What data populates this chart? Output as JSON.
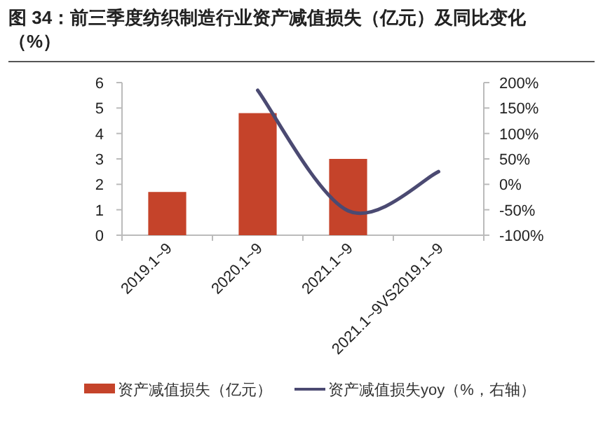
{
  "chart_data": {
    "type": "bar",
    "title": "图 34：前三季度纺织制造行业资产减值损失（亿元）及同比变化（%）",
    "categories": [
      "2019.1~9",
      "2020.1~9",
      "2021.1~9",
      "2021.1~9VS2019.1~9"
    ],
    "series": [
      {
        "name": "资产减值损失（亿元）",
        "color": "#c5432a",
        "values": [
          1.7,
          4.8,
          3.0,
          null
        ]
      },
      {
        "name": "资产减值损失yoy（%，右轴）",
        "type": "line",
        "axis": "y2",
        "color": "#4b4a72",
        "values": [
          null,
          185,
          -52,
          25
        ]
      }
    ],
    "ylim": [
      0,
      6
    ],
    "yticks": [
      0,
      1,
      2,
      3,
      4,
      5,
      6
    ],
    "y2lim": [
      -100,
      200
    ],
    "y2ticks": [
      {
        "value": -100,
        "label": "-100%"
      },
      {
        "value": -50,
        "label": "-50%"
      },
      {
        "value": 0,
        "label": "0%"
      },
      {
        "value": 50,
        "label": "50%"
      },
      {
        "value": 100,
        "label": "100%"
      },
      {
        "value": 150,
        "label": "150%"
      },
      {
        "value": 200,
        "label": "200%"
      }
    ],
    "legend": "bottom",
    "grid": false
  }
}
